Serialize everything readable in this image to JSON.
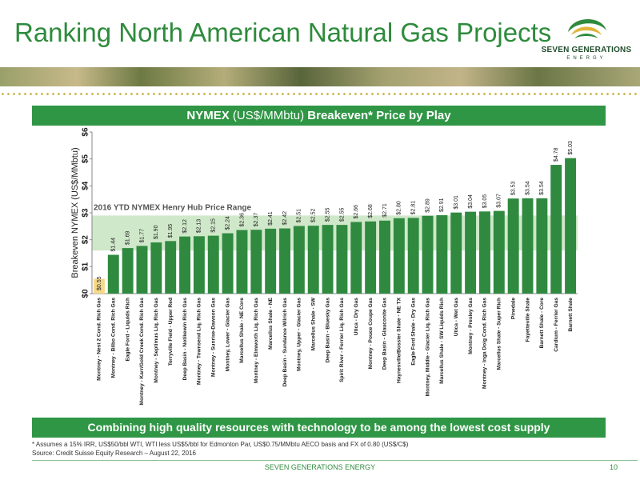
{
  "slide": {
    "title": "Ranking North American Natural Gas Projects",
    "logo_name": "SEVEN GENERATIONS",
    "logo_sub": "ENERGY",
    "chart_header_bold1": "NYMEX",
    "chart_header_unit": " (US$/MMbtu) ",
    "chart_header_bold2": "Breakeven* Price by Play",
    "bottom_bar": "Combining high quality resources with technology to be among the lowest cost supply",
    "footnote": "* Assumes a 15% IRR, US$50/bbl WTI, WTI less US$5/bbl for Edmonton Par, US$0.75/MMbtu AECO basis and FX of 0.80 (US$/C$)",
    "source": "Source: Credit Suisse Equity Research – August 22, 2016",
    "footer_text": "SEVEN GENERATIONS ENERGY",
    "page_number": "10"
  },
  "colors": {
    "title_green": "#2e8b3c",
    "bar_green": "#2f8a3f",
    "highlight_bar": "#f5d98a",
    "band": "#cfe8c9",
    "header_green": "#2f9645"
  },
  "chart_data": {
    "type": "bar",
    "ylabel": "Breakeven NYMEX (US$/MMbtu)",
    "ylim": [
      0,
      6
    ],
    "yticks": [
      "$0",
      "$1",
      "$2",
      "$3",
      "$4",
      "$5",
      "$6"
    ],
    "band_label": "2016 YTD NYMEX Henry Hub Price Range",
    "band_range": [
      1.6,
      2.9
    ],
    "highlight_index": 0,
    "categories": [
      "Montney - Nest 2 Cond. Rich Gas",
      "Montney - Bilbo Cond. Rich Gas",
      "Eagle Ford - Liquids Rich",
      "Montney - Karr/Gold Creek Cond. Rich Gas",
      "Montney - Septimus Liq. Rich Gas",
      "Terryville Field - Upper Red",
      "Deep Basin - Notikewin Rich Gas",
      "Montney - Townsend Liq. Rich Gas",
      "Montney - Sunrise-Dawson Gas",
      "Montney, Lower - Glacier Gas",
      "Marcellus Shale - NE Core",
      "Montney - Elmworth Liq. Rich Gas",
      "Marcellus Shale - NE",
      "Deep Basin - Sundance Wilrich Gas",
      "Montney, Upper - Glacier Gas",
      "Marcellus Shale - SW",
      "Deep Basin - Bluesky Gas",
      "Spirit River - Ferrier Liq. Rich Gas",
      "Utica - Dry Gas",
      "Montney - Pouce Coupe Gas",
      "Deep Basin - Glauconite Gas",
      "Haynesville/Bossier Shale - NE TX",
      "Eagle Ford Shale - Dry Gas",
      "Montney, Middle - Glacier Liq. Rich Gas",
      "Marcellus Shale - SW Liquids Rich",
      "Utica - Wet Gas",
      "Montney - Presley Gas",
      "Montney - Inga Doig Cond. Rich Gas",
      "Marcellus Shale - Super Rich",
      "Pinedale",
      "Fayetteville Shale",
      "Barnett Shale - Core",
      "Cardium - Ferrier Gas",
      "Barnett Shale"
    ],
    "values": [
      0.55,
      1.44,
      1.69,
      1.77,
      1.9,
      1.95,
      2.12,
      2.13,
      2.15,
      2.24,
      2.36,
      2.37,
      2.41,
      2.42,
      2.51,
      2.52,
      2.55,
      2.55,
      2.66,
      2.68,
      2.71,
      2.8,
      2.81,
      2.89,
      2.91,
      3.01,
      3.04,
      3.05,
      3.07,
      3.53,
      3.54,
      3.54,
      4.78,
      5.03
    ],
    "value_labels": [
      "$0.55",
      "$1.44",
      "$1.69",
      "$1.77",
      "$1.90",
      "$1.95",
      "$2.12",
      "$2.13",
      "$2.15",
      "$2.24",
      "$2.36",
      "$2.37",
      "$2.41",
      "$2.42",
      "$2.51",
      "$2.52",
      "$2.55",
      "$2.55",
      "$2.66",
      "$2.68",
      "$2.71",
      "$2.80",
      "$2.81",
      "$2.89",
      "$2.91",
      "$3.01",
      "$3.04",
      "$3.05",
      "$3.07",
      "$3.53",
      "$3.54",
      "$3.54",
      "$4.78",
      "$5.03"
    ]
  }
}
